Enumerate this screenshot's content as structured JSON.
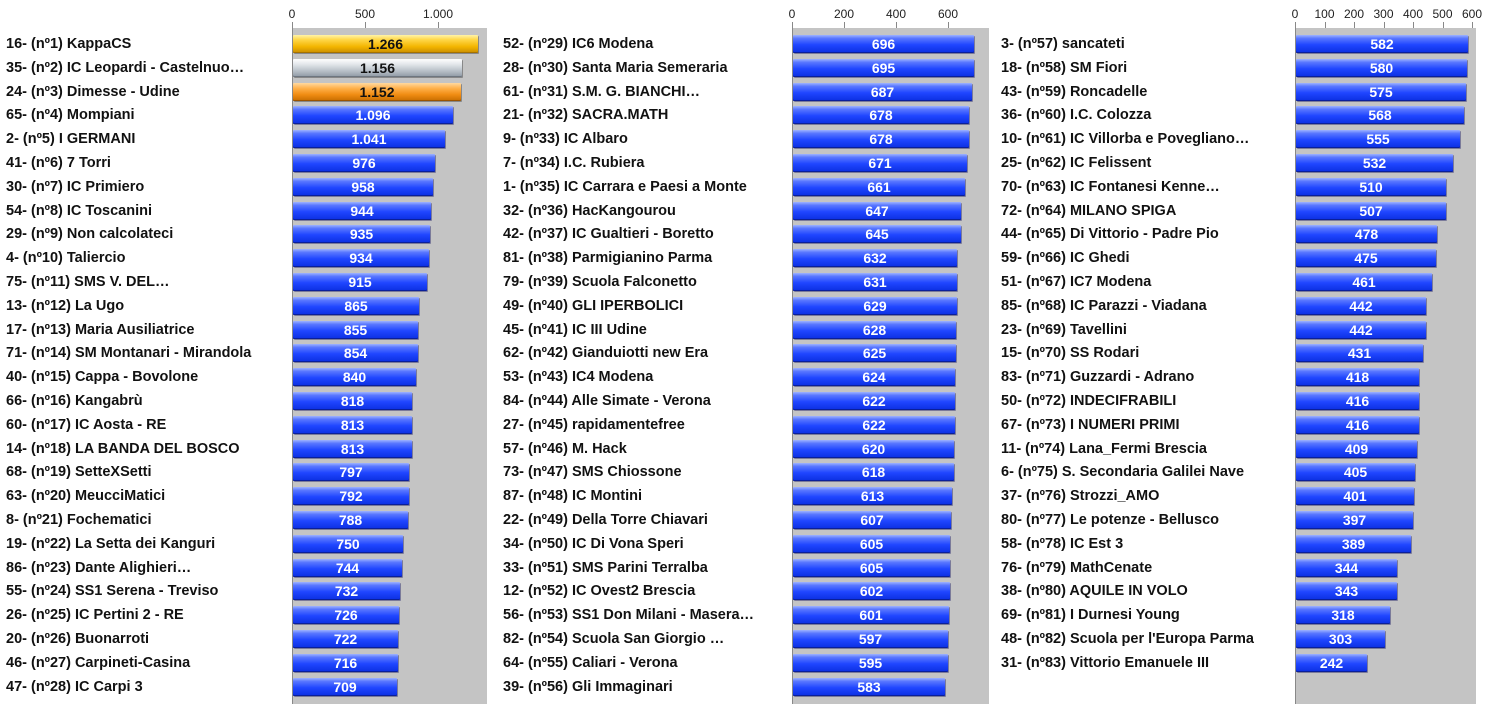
{
  "chart_data": [
    {
      "type": "bar",
      "orientation": "horizontal",
      "xticks": [
        0,
        500,
        1000
      ],
      "xtick_labels": [
        "0",
        "500",
        "1.000"
      ],
      "xlim": [
        0,
        1350
      ],
      "grid": false,
      "highlight_colors": {
        "gold": "#f3b500",
        "silver": "#b9c1c9",
        "bronze": "#f08c12",
        "default": "#1f45ff"
      },
      "categories": [
        "16- (nº1) KappaCS",
        "35- (nº2) IC Leopardi - Castelnuo…",
        "24- (nº3) Dimesse - Udine",
        "65- (nº4) Mompiani",
        "2- (nº5) I GERMANI",
        "41- (nº6) 7 Torri",
        "30- (nº7) IC Primiero",
        "54- (nº8) IC Toscanini",
        "29- (nº9) Non calcolateci",
        "4- (nº10) Taliercio",
        "75- (nº11) SMS V. DEL…",
        "13- (nº12) La Ugo",
        "17- (nº13) Maria Ausiliatrice",
        "71- (nº14) SM Montanari - Mirandola",
        "40- (nº15) Cappa - Bovolone",
        "66- (nº16) Kangabrù",
        "60- (nº17) IC Aosta - RE",
        "14- (nº18) LA BANDA DEL BOSCO",
        "68- (nº19) SetteXSetti",
        "63- (nº20) MeucciMatici",
        "8- (nº21) Fochematici",
        "19- (nº22) La Setta dei Kanguri",
        "86- (nº23) Dante Alighieri…",
        "55- (nº24) SS1 Serena - Treviso",
        "26- (nº25) IC Pertini 2 - RE",
        "20- (nº26) Buonarroti",
        "46- (nº27) Carpineti-Casina",
        "47- (nº28) IC Carpi 3"
      ],
      "values": [
        1266,
        1156,
        1152,
        1096,
        1041,
        976,
        958,
        944,
        935,
        934,
        915,
        865,
        855,
        854,
        840,
        818,
        813,
        813,
        797,
        792,
        788,
        750,
        744,
        732,
        726,
        722,
        716,
        709
      ],
      "value_labels": [
        "1.266",
        "1.156",
        "1.152",
        "1.096",
        "1.041",
        "976",
        "958",
        "944",
        "935",
        "934",
        "915",
        "865",
        "855",
        "854",
        "840",
        "818",
        "813",
        "813",
        "797",
        "792",
        "788",
        "750",
        "744",
        "732",
        "726",
        "722",
        "716",
        "709"
      ],
      "bar_styles": [
        "gold",
        "silver",
        "bronze"
      ]
    },
    {
      "type": "bar",
      "orientation": "horizontal",
      "xticks": [
        0,
        200,
        400,
        600
      ],
      "xtick_labels": [
        "0",
        "200",
        "400",
        "600"
      ],
      "xlim": [
        0,
        700
      ],
      "grid": false,
      "categories": [
        "52- (nº29) IC6 Modena",
        "28- (nº30) Santa Maria Semeraria",
        "61- (nº31) S.M. G. BIANCHI…",
        "21- (nº32) SACRA.MATH",
        "9- (nº33) IC Albaro",
        "7- (nº34) I.C. Rubiera",
        "1- (nº35) IC Carrara e Paesi a Monte",
        "32- (nº36) HacKangourou",
        "42- (nº37) IC Gualtieri - Boretto",
        "81- (nº38) Parmigianino Parma",
        "79- (nº39) Scuola Falconetto",
        "49- (nº40) GLI IPERBOLICI",
        "45- (nº41) IC III Udine",
        "62- (nº42) Gianduiotti new Era",
        "53- (nº43) IC4 Modena",
        "84- (nº44) Alle Simate - Verona",
        "27- (nº45) rapidamentefree",
        "57- (nº46) M. Hack",
        "73- (nº47) SMS Chiossone",
        "87- (nº48) IC Montini",
        "22- (nº49) Della Torre Chiavari",
        "34- (nº50) IC Di Vona Speri",
        "33- (nº51) SMS Parini Terralba",
        "12- (nº52) IC Ovest2 Brescia",
        "56- (nº53) SS1 Don Milani - Masera…",
        "82- (nº54) Scuola San Giorgio …",
        "64- (nº55) Caliari - Verona",
        "39- (nº56) Gli Immaginari"
      ],
      "values": [
        696,
        695,
        687,
        678,
        678,
        671,
        661,
        647,
        645,
        632,
        631,
        629,
        628,
        625,
        624,
        622,
        622,
        620,
        618,
        613,
        607,
        605,
        605,
        602,
        601,
        597,
        595,
        583
      ],
      "value_labels": [
        "696",
        "695",
        "687",
        "678",
        "678",
        "671",
        "661",
        "647",
        "645",
        "632",
        "631",
        "629",
        "628",
        "625",
        "624",
        "622",
        "622",
        "620",
        "618",
        "613",
        "607",
        "605",
        "605",
        "602",
        "601",
        "597",
        "595",
        "583"
      ],
      "bar_styles": []
    },
    {
      "type": "bar",
      "orientation": "horizontal",
      "xticks": [
        0,
        100,
        200,
        300,
        400,
        500,
        600
      ],
      "xtick_labels": [
        "0",
        "100",
        "200",
        "300",
        "400",
        "500",
        "600"
      ],
      "xlim": [
        0,
        600
      ],
      "grid": false,
      "categories": [
        "3- (nº57) sancateti",
        "18- (nº58) SM Fiori",
        "43- (nº59) Roncadelle",
        "36- (nº60) I.C. Colozza",
        "10- (nº61) IC Villorba e Povegliano…",
        "25- (nº62) IC Felissent",
        "70- (nº63) IC Fontanesi Kenne…",
        "72- (nº64) MILANO SPIGA",
        "44- (nº65) Di Vittorio - Padre Pio",
        "59- (nº66) IC Ghedi",
        "51- (nº67) IC7 Modena",
        "85- (nº68) IC Parazzi - Viadana",
        "23- (nº69) Tavellini",
        "15- (nº70) SS Rodari",
        "83- (nº71) Guzzardi - Adrano",
        "50- (nº72) INDECIFRABILI",
        "67- (nº73) I NUMERI PRIMI",
        "11- (nº74) Lana_Fermi Brescia",
        "6- (nº75) S. Secondaria Galilei Nave",
        "37- (nº76) Strozzi_AMO",
        "80- (nº77) Le potenze - Bellusco",
        "58- (nº78) IC Est 3",
        "76- (nº79) MathCenate",
        "38- (nº80) AQUILE IN VOLO",
        "69- (nº81) I Durnesi Young",
        "48- (nº82) Scuola per l'Europa Parma",
        "31- (nº83) Vittorio Emanuele III"
      ],
      "values": [
        582,
        580,
        575,
        568,
        555,
        532,
        510,
        507,
        478,
        475,
        461,
        442,
        442,
        431,
        418,
        416,
        416,
        409,
        405,
        401,
        397,
        389,
        344,
        343,
        318,
        303,
        242
      ],
      "value_labels": [
        "582",
        "580",
        "575",
        "568",
        "555",
        "532",
        "510",
        "507",
        "478",
        "475",
        "461",
        "442",
        "442",
        "431",
        "418",
        "416",
        "416",
        "409",
        "405",
        "401",
        "397",
        "389",
        "344",
        "343",
        "318",
        "303",
        "242"
      ],
      "bar_styles": []
    }
  ]
}
